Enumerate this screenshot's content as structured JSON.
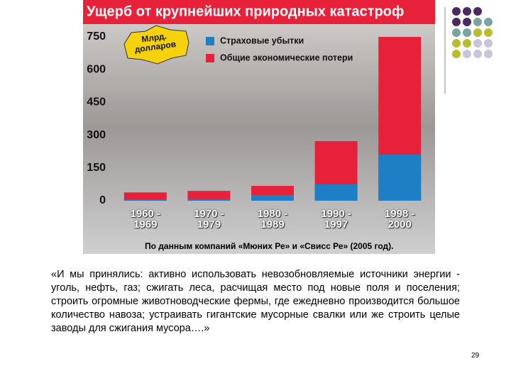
{
  "chart_data": {
    "type": "bar",
    "title": "Ущерб от крупнейших природных катастроф",
    "unit_badge": "Млрд.\nдолларов",
    "categories": [
      "1960 -\n1969",
      "1970 -\n1979",
      "1980 -\n1989",
      "1990 -\n1997",
      "1998 -\n2000"
    ],
    "series": [
      {
        "name": "Общие экономические потери",
        "color": "#e8213a",
        "values": [
          38,
          45,
          68,
          273,
          750
        ]
      },
      {
        "name": "Страховые убытки",
        "color": "#1f7fc4",
        "values": [
          6,
          7,
          26,
          75,
          211
        ]
      }
    ],
    "ylim": [
      0,
      750
    ],
    "yticks": [
      0,
      150,
      300,
      450,
      600,
      750
    ],
    "grid": false,
    "source": "По данным компаний «Мюних Ре» и «Свисс Ре» (2005 год)."
  },
  "quote": "«И мы принялись: активно использовать невозобновляемые источники энергии - уголь, нефть, газ; сжигать леса, расчищая место под новые поля и поселения; строить огромные животноводческие фермы, где ежедневно производится большое количество навоза; устраивать гигантские мусорные свалки или же строить целые заводы для сжигания мусора….»",
  "page_number": "29"
}
